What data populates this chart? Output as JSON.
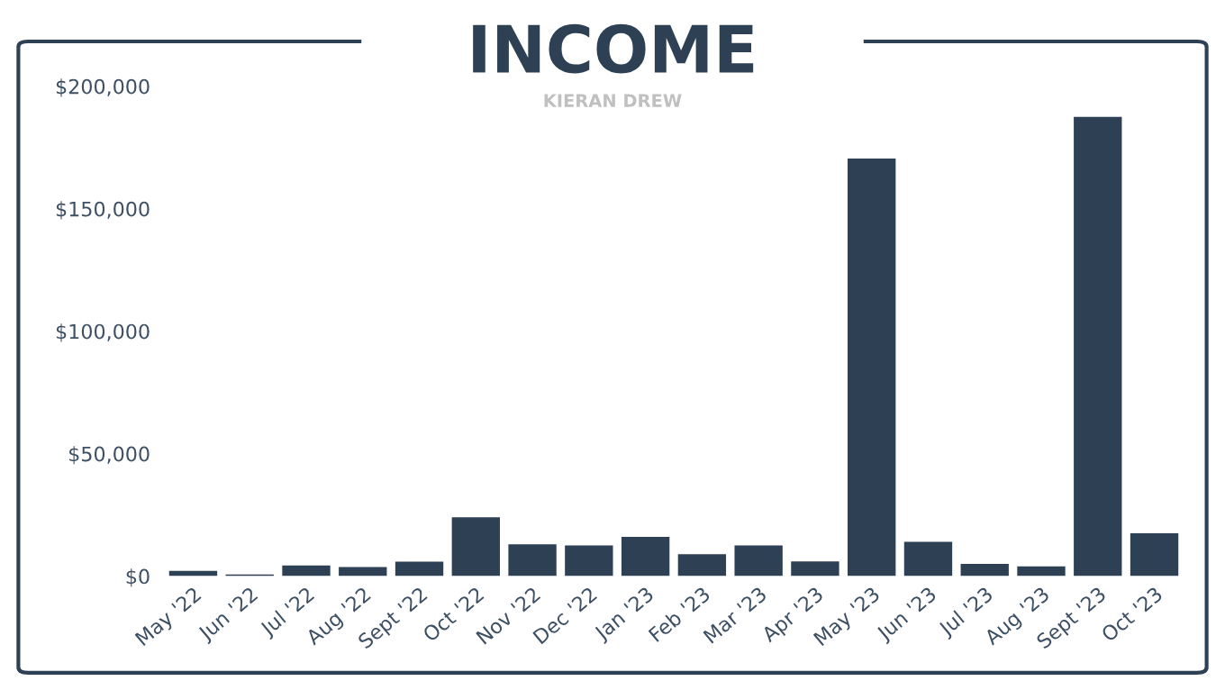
{
  "chart_data": {
    "type": "bar",
    "title": "INCOME",
    "subtitle": "KIERAN DREW",
    "categories": [
      "May '22",
      "Jun '22",
      "Jul '22",
      "Aug '22",
      "Sept '22",
      "Oct '22",
      "Nov '22",
      "Dec '22",
      "Jan '23",
      "Feb '23",
      "Mar '23",
      "Apr '23",
      "May '23",
      "Jun '23",
      "Jul '23",
      "Aug '23",
      "Sept '23",
      "Oct '23"
    ],
    "values": [
      2200,
      700,
      4400,
      3700,
      5900,
      24000,
      13000,
      12500,
      16000,
      9000,
      12500,
      6000,
      170500,
      14000,
      5000,
      4000,
      187500,
      17500
    ],
    "color": "#2e4053",
    "ylim": [
      0,
      200000
    ],
    "yticks": [
      {
        "value": 0,
        "label": "$0"
      },
      {
        "value": 50000,
        "label": "$50,000"
      },
      {
        "value": 100000,
        "label": "$100,000"
      },
      {
        "value": 150000,
        "label": "$150,000"
      },
      {
        "value": 200000,
        "label": "$200,000"
      }
    ],
    "grid": false
  }
}
